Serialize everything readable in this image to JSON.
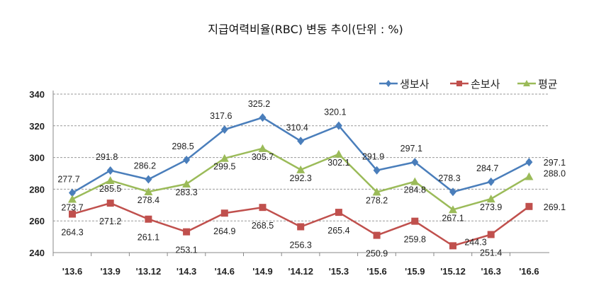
{
  "chart_data": {
    "type": "line",
    "title": "지급여력비율(RBC) 변동 추이(단위 : %)",
    "xlabel": "",
    "ylabel": "",
    "categories": [
      "'13.6",
      "'13.9",
      "'13.12",
      "'14.3",
      "'14.6",
      "'14.9",
      "'14.12",
      "'15.3",
      "'15.6",
      "'15.9",
      "'15.12",
      "'16.3",
      "'16.6"
    ],
    "ylim": [
      240,
      340
    ],
    "yticks": [
      240,
      260,
      280,
      300,
      320,
      340
    ],
    "grid": true,
    "legend_position": "top-right",
    "series": [
      {
        "name": "생보사",
        "color": "#4a7ebb",
        "marker": "diamond",
        "values": [
          277.7,
          291.8,
          286.2,
          298.5,
          317.6,
          325.2,
          310.4,
          320.1,
          291.9,
          297.1,
          278.3,
          284.7,
          297.1
        ]
      },
      {
        "name": "손보사",
        "color": "#c0504d",
        "marker": "square",
        "values": [
          264.3,
          271.2,
          261.1,
          253.1,
          264.9,
          268.5,
          256.3,
          265.4,
          250.9,
          259.8,
          244.3,
          251.4,
          269.1
        ]
      },
      {
        "name": "평균",
        "color": "#9bbb59",
        "marker": "triangle",
        "values": [
          273.7,
          285.5,
          278.4,
          283.3,
          299.5,
          305.7,
          292.3,
          302.1,
          278.2,
          284.8,
          267.1,
          273.9,
          288.0
        ]
      }
    ]
  }
}
